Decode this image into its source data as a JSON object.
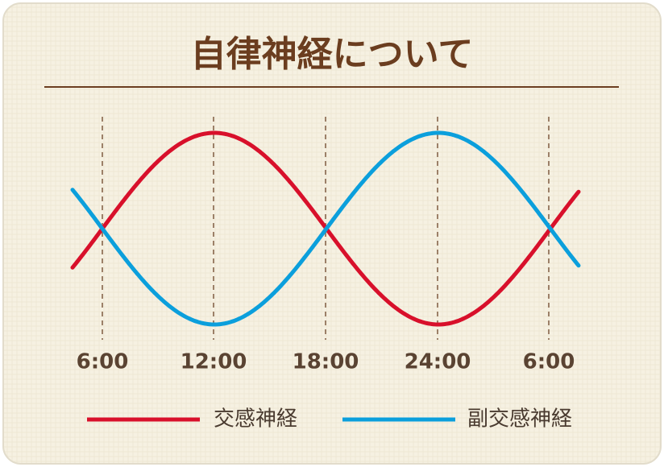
{
  "title": "自律神経について",
  "time_labels": [
    "6:00",
    "12:00",
    "18:00",
    "24:00",
    "6:00"
  ],
  "legend": [
    {
      "label": "交感神経",
      "color": "#d8102b"
    },
    {
      "label": "副交感神経",
      "color": "#0b9fdc"
    }
  ]
}
